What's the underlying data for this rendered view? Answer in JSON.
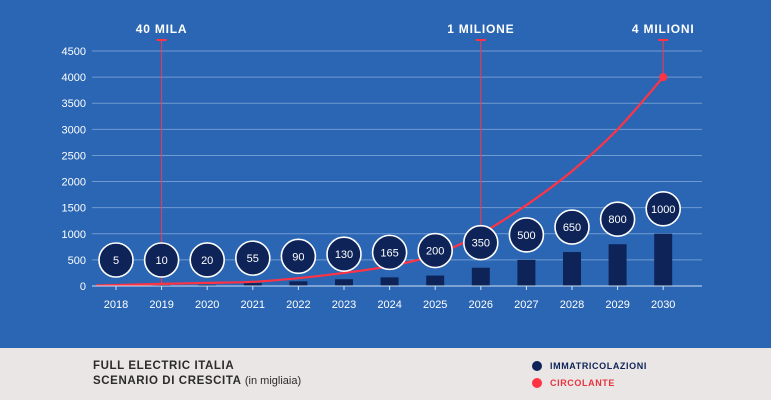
{
  "chart_data": {
    "type": "bar",
    "title": "FULL ELECTRIC ITALIA",
    "subtitle": "SCENARIO DI CRESCITA",
    "subtitle_note": "(in migliaia)",
    "categories": [
      "2018",
      "2019",
      "2020",
      "2021",
      "2022",
      "2023",
      "2024",
      "2025",
      "2026",
      "2027",
      "2028",
      "2029",
      "2030"
    ],
    "yticks": [
      0,
      500,
      1000,
      1500,
      2000,
      2500,
      3000,
      3500,
      4000,
      4500
    ],
    "ylim": [
      0,
      4700
    ],
    "grid": true,
    "legend_position": "bottom-right",
    "series": [
      {
        "name": "IMMATRICOLAZIONI",
        "type": "bar",
        "color": "#0e2357",
        "values": [
          5,
          10,
          20,
          55,
          90,
          130,
          165,
          200,
          350,
          500,
          650,
          800,
          1000
        ]
      },
      {
        "name": "CIRCOLANTE",
        "type": "line",
        "color": "#ff3344",
        "values": [
          10,
          40,
          60,
          80,
          150,
          250,
          380,
          600,
          1000,
          1550,
          2200,
          3000,
          4000
        ]
      }
    ],
    "annotations": [
      {
        "year": "2019",
        "label": "40 MILA"
      },
      {
        "year": "2026",
        "label": "1 MILIONE"
      },
      {
        "year": "2030",
        "label": "4 MILIONI"
      }
    ]
  },
  "colors": {
    "panel_bg": "#2a66b3",
    "footer_bg": "#e9e6e5",
    "bar": "#0e2357",
    "line": "#ff3344",
    "bubble_fill": "#0e2357",
    "text_light": "#ffffff"
  }
}
